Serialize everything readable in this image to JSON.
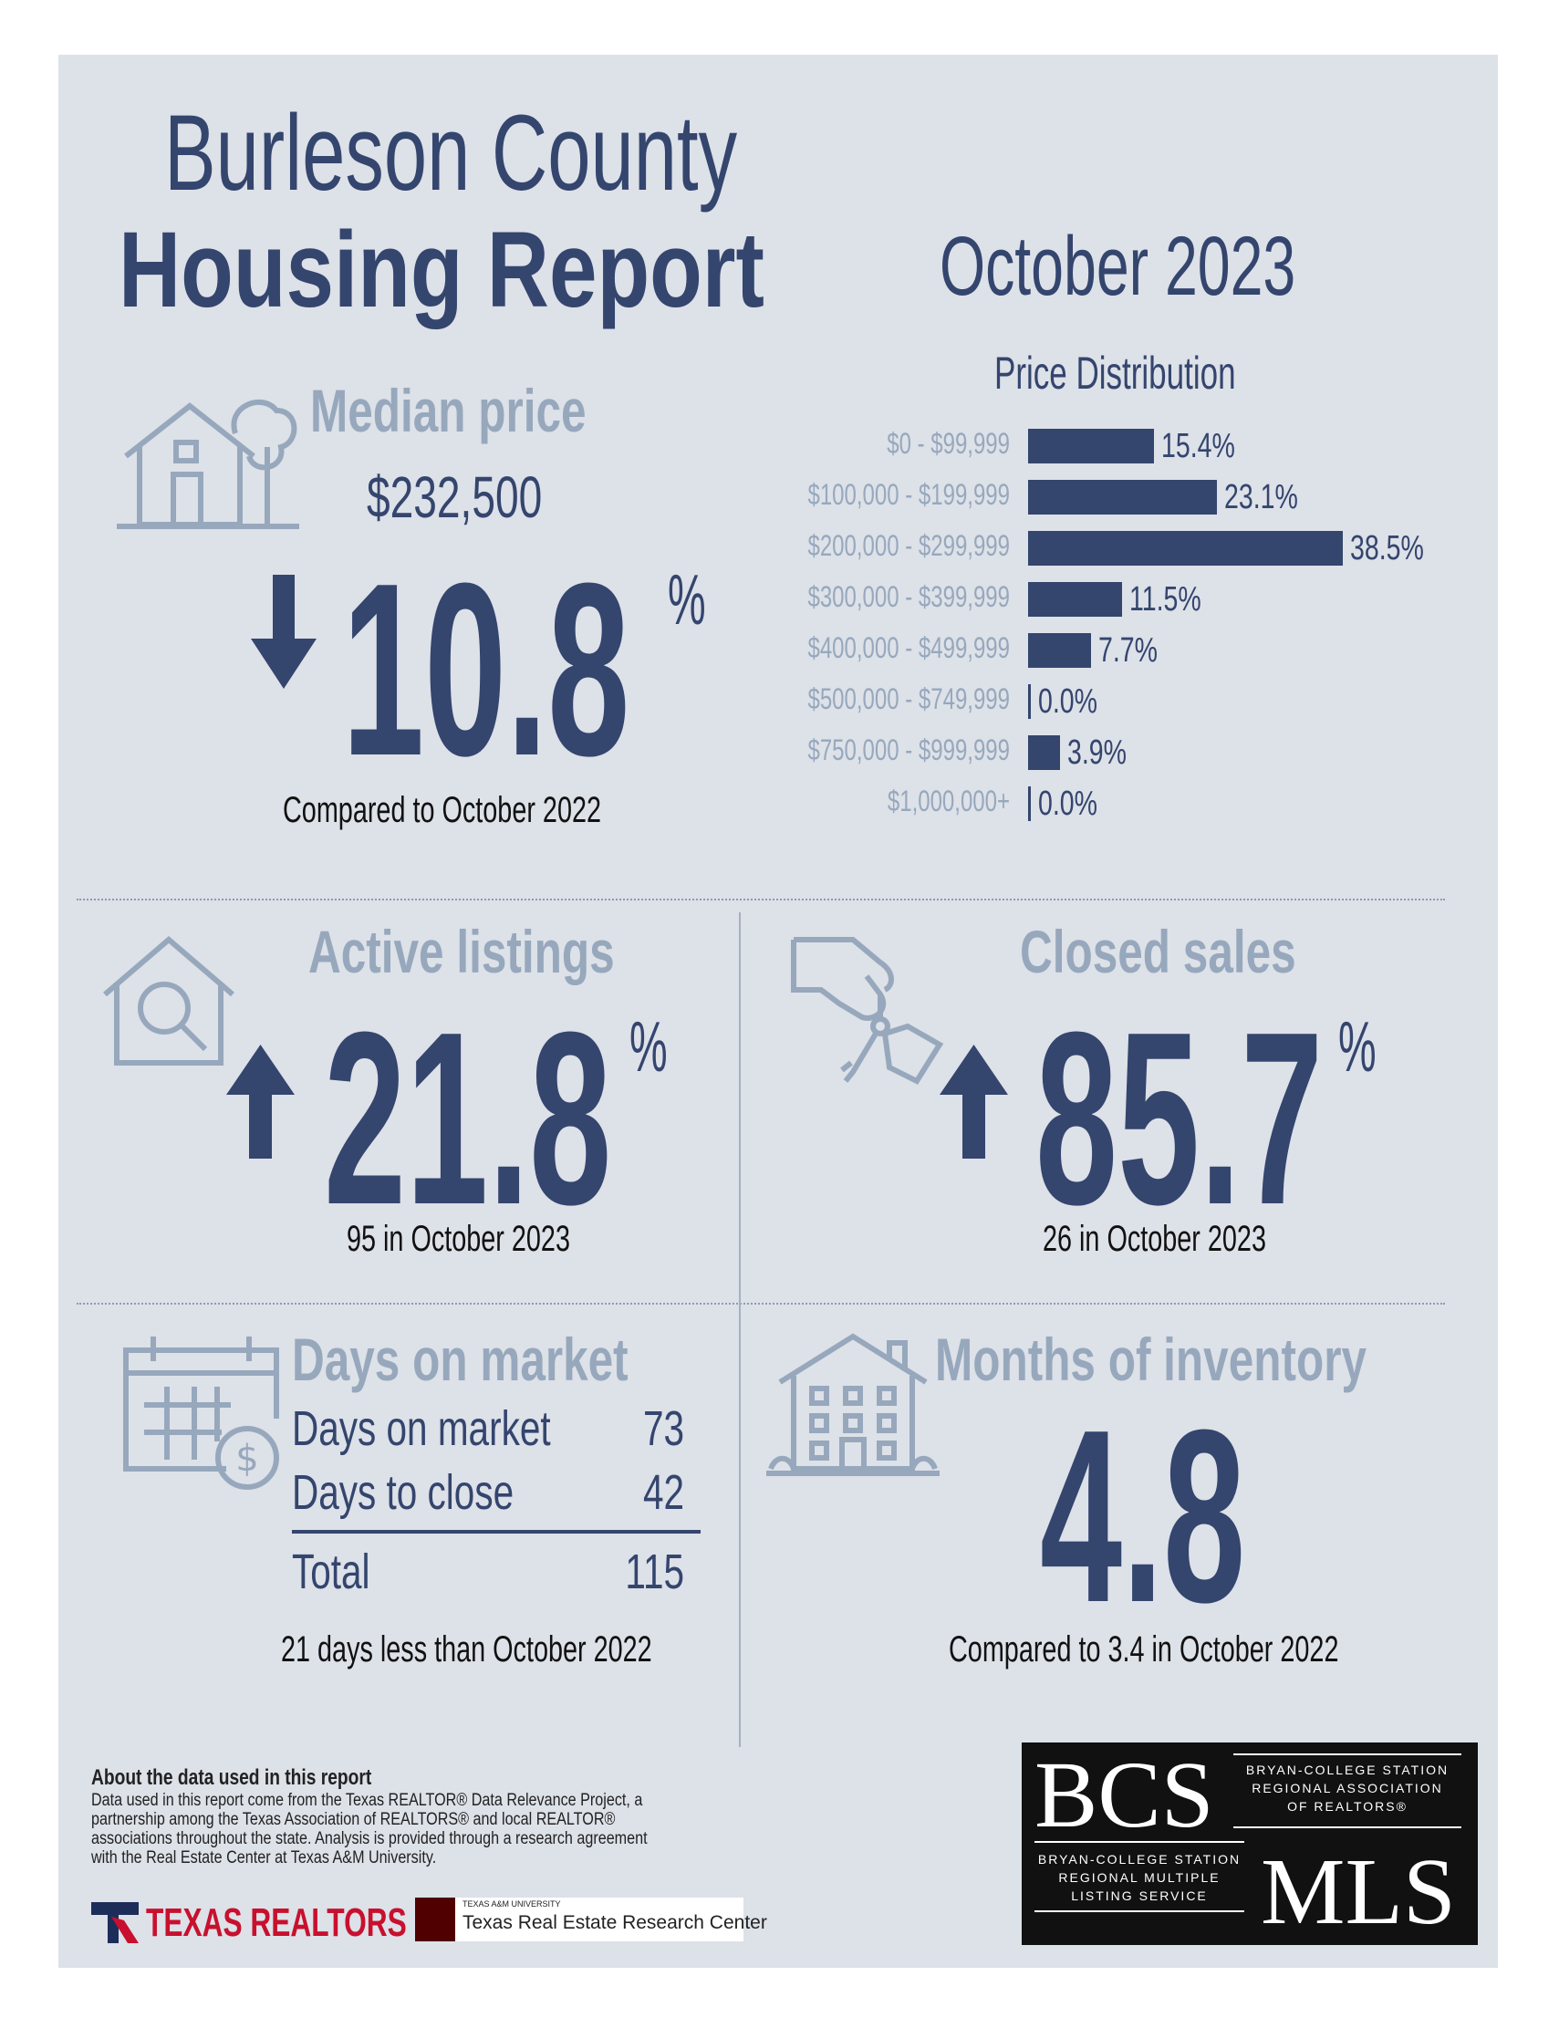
{
  "header": {
    "title_line1": "Burleson County",
    "title_line2": "Housing Report",
    "month": "October 2023"
  },
  "median_price": {
    "label": "Median price",
    "value": "$232,500",
    "change": "10.8",
    "pct": "%",
    "direction": "down",
    "caption": "Compared to October 2022",
    "icon": "house-tree-icon"
  },
  "price_distribution": {
    "title": "Price Distribution",
    "rows": [
      {
        "range": "$0 - $99,999",
        "pct": 15.4,
        "label": "15.4%"
      },
      {
        "range": "$100,000 - $199,999",
        "pct": 23.1,
        "label": "23.1%"
      },
      {
        "range": "$200,000 - $299,999",
        "pct": 38.5,
        "label": "38.5%"
      },
      {
        "range": "$300,000 - $399,999",
        "pct": 11.5,
        "label": "11.5%"
      },
      {
        "range": "$400,000 - $499,999",
        "pct": 7.7,
        "label": "7.7%"
      },
      {
        "range": "$500,000 - $749,999",
        "pct": 0.0,
        "label": "0.0%"
      },
      {
        "range": "$750,000 - $999,999",
        "pct": 3.9,
        "label": "3.9%"
      },
      {
        "range": "$1,000,000+",
        "pct": 0.0,
        "label": "0.0%"
      }
    ]
  },
  "active_listings": {
    "label": "Active listings",
    "change": "21.8",
    "pct": "%",
    "direction": "up",
    "caption": "95 in October 2023",
    "icon": "house-magnifier-icon"
  },
  "closed_sales": {
    "label": "Closed sales",
    "change": "85.7",
    "pct": "%",
    "direction": "up",
    "caption": "26 in October 2023",
    "icon": "hand-keys-icon"
  },
  "days_on_market": {
    "label": "Days on market",
    "rows": [
      {
        "name": "Days on market",
        "value": "73"
      },
      {
        "name": "Days to close",
        "value": "42"
      }
    ],
    "total_label": "Total",
    "total_value": "115",
    "caption": "21 days less than October 2022",
    "icon": "calendar-dollar-icon"
  },
  "months_inventory": {
    "label": "Months of inventory",
    "value": "4.8",
    "caption": "Compared to 3.4 in October 2022",
    "icon": "apartment-building-icon"
  },
  "footer": {
    "heading": "About the data used in this report",
    "text": "Data used in this report come from the Texas REALTOR® Data Relevance Project, a partnership among the Texas Association of REALTORS® and local REALTOR® associations throughout the state. Analysis is provided through a research agreement with the Real Estate Center at Texas A&M University.",
    "texas_realtors": "TEXAS REALTORS",
    "tamu_small": "TEXAS A&M UNIVERSITY",
    "tamu_center": "Texas Real Estate Research Center",
    "bcs": "BCS",
    "bcs_assoc": [
      "BRYAN-COLLEGE STATION",
      "REGIONAL ASSOCIATION",
      "OF REALTORS®"
    ],
    "mls": "MLS",
    "mls_assoc": [
      "BRYAN-COLLEGE STATION",
      "REGIONAL MULTIPLE",
      "LISTING SERVICE"
    ]
  },
  "colors": {
    "navy": "#34456e",
    "light": "#97a8bd",
    "panel": "#dde1e8"
  }
}
